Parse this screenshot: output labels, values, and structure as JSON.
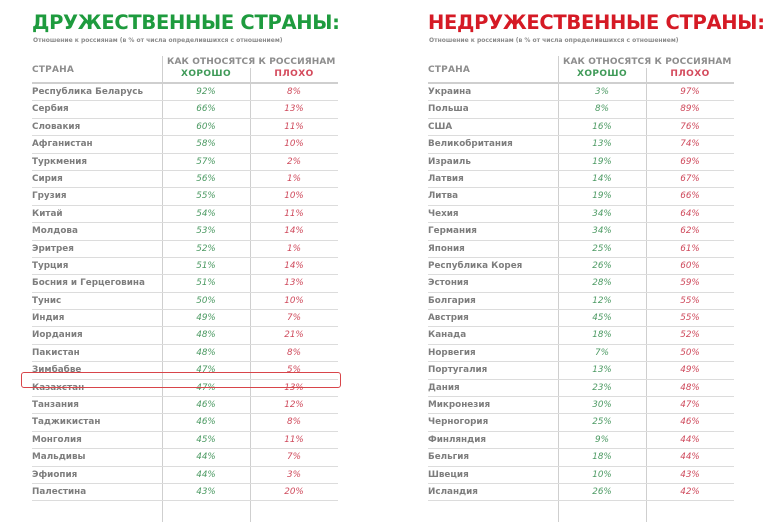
{
  "left": {
    "title": "ДРУЖЕСТВЕННЫЕ СТРАНЫ:",
    "subtitle": "Отношение к россиянам (в % от числа определившихся с отношением)",
    "header": {
      "country": "СТРАНА",
      "group": "КАК ОТНОСЯТСЯ К РОССИЯНАМ",
      "good": "ХОРОШО",
      "bad": "ПЛОХО"
    },
    "highlighted_row": "Казахстан",
    "rows": [
      {
        "country": "Республика Беларусь",
        "good": "92%",
        "bad": "8%"
      },
      {
        "country": "Сербия",
        "good": "66%",
        "bad": "13%"
      },
      {
        "country": "Словакия",
        "good": "60%",
        "bad": "11%"
      },
      {
        "country": "Афганистан",
        "good": "58%",
        "bad": "10%"
      },
      {
        "country": "Туркмения",
        "good": "57%",
        "bad": "2%"
      },
      {
        "country": "Сирия",
        "good": "56%",
        "bad": "1%"
      },
      {
        "country": "Грузия",
        "good": "55%",
        "bad": "10%"
      },
      {
        "country": "Китай",
        "good": "54%",
        "bad": "11%"
      },
      {
        "country": "Молдова",
        "good": "53%",
        "bad": "14%"
      },
      {
        "country": "Эритрея",
        "good": "52%",
        "bad": "1%"
      },
      {
        "country": "Турция",
        "good": "51%",
        "bad": "14%"
      },
      {
        "country": "Босния и Герцеговина",
        "good": "51%",
        "bad": "13%"
      },
      {
        "country": "Тунис",
        "good": "50%",
        "bad": "10%"
      },
      {
        "country": "Индия",
        "good": "49%",
        "bad": "7%"
      },
      {
        "country": "Иордания",
        "good": "48%",
        "bad": "21%"
      },
      {
        "country": "Пакистан",
        "good": "48%",
        "bad": "8%"
      },
      {
        "country": "Зимбабве",
        "good": "47%",
        "bad": "5%"
      },
      {
        "country": "Казахстан",
        "good": "47%",
        "bad": "13%"
      },
      {
        "country": "Танзания",
        "good": "46%",
        "bad": "12%"
      },
      {
        "country": "Таджикистан",
        "good": "46%",
        "bad": "8%"
      },
      {
        "country": "Монголия",
        "good": "45%",
        "bad": "11%"
      },
      {
        "country": "Мальдивы",
        "good": "44%",
        "bad": "7%"
      },
      {
        "country": "Эфиопия",
        "good": "44%",
        "bad": "3%"
      },
      {
        "country": "Палестина",
        "good": "43%",
        "bad": "20%"
      }
    ]
  },
  "right": {
    "title": "НЕДРУЖЕСТВЕННЫЕ СТРАНЫ:",
    "subtitle": "Отношение к россиянам (в % от числа определившихся с отношением)",
    "header": {
      "country": "СТРАНА",
      "group": "КАК ОТНОСЯТСЯ К РОССИЯНАМ",
      "good": "ХОРОШО",
      "bad": "ПЛОХО"
    },
    "rows": [
      {
        "country": "Украина",
        "good": "3%",
        "bad": "97%"
      },
      {
        "country": "Польша",
        "good": "8%",
        "bad": "89%"
      },
      {
        "country": "США",
        "good": "16%",
        "bad": "76%"
      },
      {
        "country": "Великобритания",
        "good": "13%",
        "bad": "74%"
      },
      {
        "country": "Израиль",
        "good": "19%",
        "bad": "69%"
      },
      {
        "country": "Латвия",
        "good": "14%",
        "bad": "67%"
      },
      {
        "country": "Литва",
        "good": "19%",
        "bad": "66%"
      },
      {
        "country": "Чехия",
        "good": "34%",
        "bad": "64%"
      },
      {
        "country": "Германия",
        "good": "34%",
        "bad": "62%"
      },
      {
        "country": "Япония",
        "good": "25%",
        "bad": "61%"
      },
      {
        "country": "Республика Корея",
        "good": "26%",
        "bad": "60%"
      },
      {
        "country": "Эстония",
        "good": "28%",
        "bad": "59%"
      },
      {
        "country": "Болгария",
        "good": "12%",
        "bad": "55%"
      },
      {
        "country": "Австрия",
        "good": "45%",
        "bad": "55%"
      },
      {
        "country": "Канада",
        "good": "18%",
        "bad": "52%"
      },
      {
        "country": "Норвегия",
        "good": "7%",
        "bad": "50%"
      },
      {
        "country": "Португалия",
        "good": "13%",
        "bad": "49%"
      },
      {
        "country": "Дания",
        "good": "23%",
        "bad": "48%"
      },
      {
        "country": "Микронезия",
        "good": "30%",
        "bad": "47%"
      },
      {
        "country": "Черногория",
        "good": "25%",
        "bad": "46%"
      },
      {
        "country": "Финляндия",
        "good": "9%",
        "bad": "44%"
      },
      {
        "country": "Бельгия",
        "good": "18%",
        "bad": "44%"
      },
      {
        "country": "Швеция",
        "good": "10%",
        "bad": "43%"
      },
      {
        "country": "Исландия",
        "good": "26%",
        "bad": "42%"
      }
    ]
  },
  "colors": {
    "friendly_title": "#1e9b3e",
    "unfriendly_title": "#d51a25",
    "good_value": "#4c9a63",
    "bad_value": "#cf4a5c",
    "highlight_border": "#d8454a",
    "country_text": "#7d7d7d"
  }
}
